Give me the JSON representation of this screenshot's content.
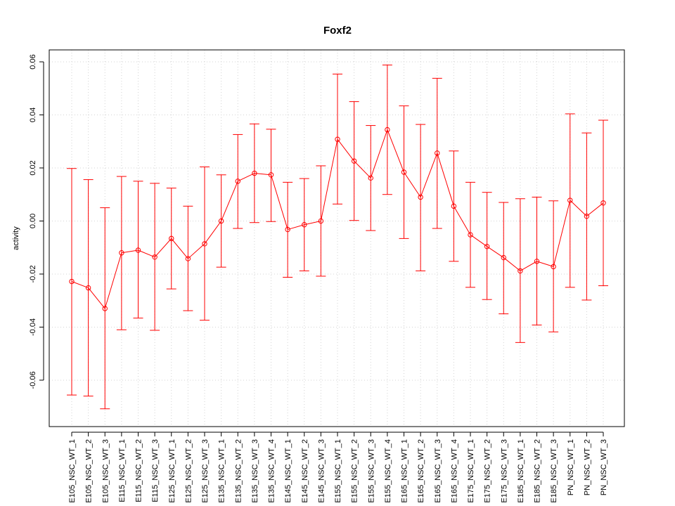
{
  "chart_data": {
    "type": "line",
    "title": "Foxf2",
    "xlabel": "",
    "ylabel": "activity",
    "ylim": [
      -0.0775,
      0.0645
    ],
    "yticks": [
      -0.06,
      -0.04,
      -0.02,
      0.0,
      0.02,
      0.04,
      0.06
    ],
    "ytick_labels": [
      "-0.06",
      "-0.04",
      "-0.02",
      "0.00",
      "0.02",
      "0.04",
      "0.06"
    ],
    "grid": true,
    "color": "#ff0000",
    "categories": [
      "E105_NSC_WT_1",
      "E105_NSC_WT_2",
      "E105_NSC_WT_3",
      "E115_NSC_WT_1",
      "E115_NSC_WT_2",
      "E115_NSC_WT_3",
      "E125_NSC_WT_1",
      "E125_NSC_WT_2",
      "E125_NSC_WT_3",
      "E135_NSC_WT_1",
      "E135_NSC_WT_2",
      "E135_NSC_WT_3",
      "E135_NSC_WT_4",
      "E145_NSC_WT_1",
      "E145_NSC_WT_2",
      "E145_NSC_WT_3",
      "E155_NSC_WT_1",
      "E155_NSC_WT_2",
      "E155_NSC_WT_3",
      "E155_NSC_WT_4",
      "E165_NSC_WT_1",
      "E165_NSC_WT_2",
      "E165_NSC_WT_3",
      "E165_NSC_WT_4",
      "E175_NSC_WT_1",
      "E175_NSC_WT_2",
      "E175_NSC_WT_3",
      "E185_NSC_WT_1",
      "E185_NSC_WT_2",
      "E185_NSC_WT_3",
      "PN_NSC_WT_1",
      "PN_NSC_WT_2",
      "PN_NSC_WT_3"
    ],
    "series": [
      {
        "values": [
          -0.0228,
          -0.0252,
          -0.033,
          -0.012,
          -0.011,
          -0.0136,
          -0.0066,
          -0.0142,
          -0.0086,
          0.0,
          0.015,
          0.018,
          0.0174,
          -0.0032,
          -0.0014,
          0.0,
          0.0308,
          0.0226,
          0.0162,
          0.0344,
          0.0184,
          0.009,
          0.0256,
          0.0056,
          -0.0052,
          -0.0096,
          -0.0138,
          -0.0188,
          -0.0152,
          -0.0172,
          0.0078,
          0.0018,
          0.0068
        ],
        "lower": [
          -0.0656,
          -0.066,
          -0.0708,
          -0.041,
          -0.0366,
          -0.0412,
          -0.0256,
          -0.0338,
          -0.0374,
          -0.0174,
          -0.0028,
          -0.0006,
          -0.0002,
          -0.0212,
          -0.0188,
          -0.0208,
          0.0064,
          0.0002,
          -0.0036,
          0.01,
          -0.0066,
          -0.0188,
          -0.0028,
          -0.0152,
          -0.025,
          -0.0296,
          -0.035,
          -0.0458,
          -0.0392,
          -0.0418,
          -0.025,
          -0.0298,
          -0.0244
        ],
        "upper": [
          0.0198,
          0.0156,
          0.005,
          0.0168,
          0.015,
          0.0142,
          0.0124,
          0.0056,
          0.0204,
          0.0174,
          0.0326,
          0.0366,
          0.0346,
          0.0146,
          0.016,
          0.0208,
          0.0554,
          0.045,
          0.036,
          0.0588,
          0.0434,
          0.0364,
          0.0538,
          0.0264,
          0.0146,
          0.0108,
          0.007,
          0.0084,
          0.009,
          0.0076,
          0.0404,
          0.0332,
          0.038
        ]
      }
    ]
  }
}
